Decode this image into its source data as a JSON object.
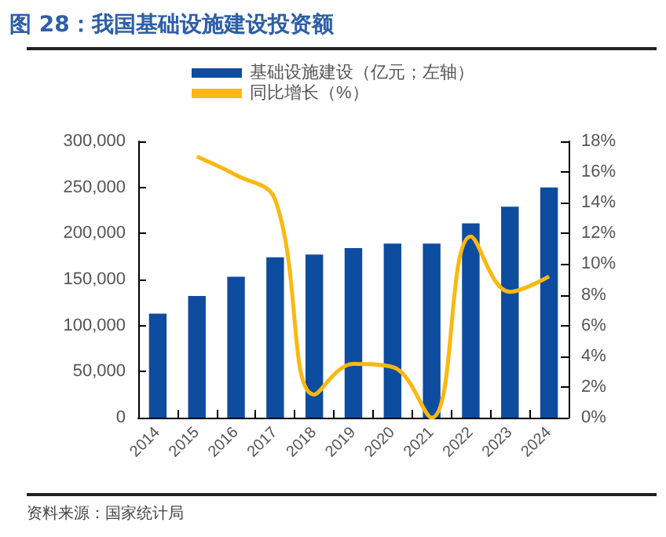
{
  "chart_data": {
    "type": "bar",
    "title": "图 28：我国基础设施建设投资额",
    "categories": [
      "2014",
      "2015",
      "2016",
      "2017",
      "2018",
      "2019",
      "2020",
      "2021",
      "2022",
      "2023",
      "2024"
    ],
    "series": [
      {
        "name": "基础设施建设（亿元；左轴）",
        "color": "#0e4c9f",
        "values": [
          113000,
          132000,
          153000,
          174000,
          177000,
          184000,
          189000,
          189000,
          211000,
          229000,
          250000
        ]
      },
      {
        "name": "同比增长（%）",
        "type": "line",
        "axis": "y2",
        "color": "#fbb80f",
        "values": [
          null,
          17.0,
          15.8,
          14.2,
          1.5,
          3.5,
          3.3,
          0.0,
          11.8,
          8.2,
          9.2
        ]
      }
    ],
    "ylim": [
      0,
      300000
    ],
    "yticks": [
      0,
      {
        "value": 50000,
        "label": "50,000"
      },
      {
        "value": 100000,
        "label": "100,000"
      },
      {
        "value": 150000,
        "label": "150,000"
      },
      {
        "value": 200000,
        "label": "200,000"
      },
      {
        "value": 250000,
        "label": "250,000"
      },
      {
        "value": 300000,
        "label": "300,000"
      }
    ],
    "y2lim": [
      0,
      18
    ],
    "y2ticks": [
      {
        "value": 0,
        "label": "0%"
      },
      {
        "value": 2,
        "label": "2%"
      },
      {
        "value": 4,
        "label": "4%"
      },
      {
        "value": 6,
        "label": "6%"
      },
      {
        "value": 8,
        "label": "8%"
      },
      {
        "value": 10,
        "label": "10%"
      },
      {
        "value": 12,
        "label": "12%"
      },
      {
        "value": 14,
        "label": "14%"
      },
      {
        "value": 16,
        "label": "16%"
      },
      {
        "value": 18,
        "label": "18%"
      }
    ],
    "legend": "top",
    "grid": false,
    "marker": "none",
    "annotations": [
      "资料来源：国家统计局"
    ]
  }
}
